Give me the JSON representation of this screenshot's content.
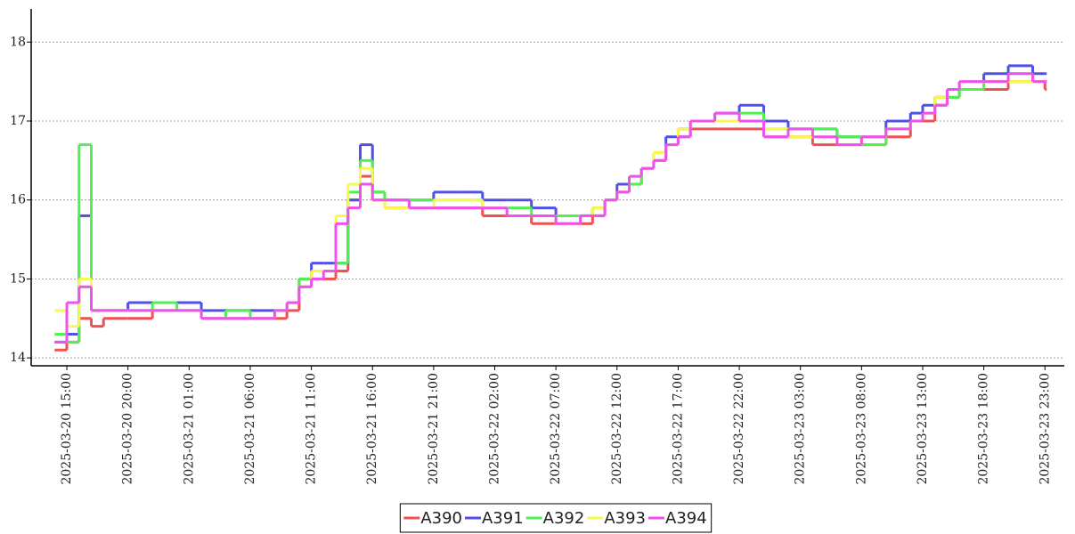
{
  "chart_data": {
    "type": "line",
    "step": true,
    "x": [
      "2025-03-20 14:00",
      "2025-03-20 15:00",
      "2025-03-20 16:00",
      "2025-03-20 17:00",
      "2025-03-20 18:00",
      "2025-03-20 20:00",
      "2025-03-20 22:00",
      "2025-03-21 00:00",
      "2025-03-21 02:00",
      "2025-03-21 04:00",
      "2025-03-21 06:00",
      "2025-03-21 08:00",
      "2025-03-21 09:00",
      "2025-03-21 10:00",
      "2025-03-21 11:00",
      "2025-03-21 12:00",
      "2025-03-21 13:00",
      "2025-03-21 14:00",
      "2025-03-21 15:00",
      "2025-03-21 16:00",
      "2025-03-21 17:00",
      "2025-03-21 19:00",
      "2025-03-21 21:00",
      "2025-03-21 23:00",
      "2025-03-22 01:00",
      "2025-03-22 03:00",
      "2025-03-22 05:00",
      "2025-03-22 07:00",
      "2025-03-22 09:00",
      "2025-03-22 10:00",
      "2025-03-22 11:00",
      "2025-03-22 12:00",
      "2025-03-22 13:00",
      "2025-03-22 14:00",
      "2025-03-22 15:00",
      "2025-03-22 16:00",
      "2025-03-22 17:00",
      "2025-03-22 18:00",
      "2025-03-22 20:00",
      "2025-03-22 22:00",
      "2025-03-23 00:00",
      "2025-03-23 02:00",
      "2025-03-23 04:00",
      "2025-03-23 06:00",
      "2025-03-23 08:00",
      "2025-03-23 10:00",
      "2025-03-23 12:00",
      "2025-03-23 13:00",
      "2025-03-23 14:00",
      "2025-03-23 15:00",
      "2025-03-23 16:00",
      "2025-03-23 18:00",
      "2025-03-23 20:00",
      "2025-03-23 22:00",
      "2025-03-23 23:00"
    ],
    "series": [
      {
        "name": "A390",
        "color": "#f05050",
        "values": [
          14.1,
          14.2,
          14.5,
          14.4,
          14.5,
          14.5,
          14.6,
          14.6,
          14.5,
          14.5,
          14.5,
          14.5,
          14.6,
          14.9,
          15.0,
          15.0,
          15.1,
          16.0,
          16.3,
          16.0,
          15.9,
          15.9,
          15.9,
          15.9,
          15.8,
          15.8,
          15.7,
          15.7,
          15.7,
          15.8,
          16.0,
          16.1,
          16.2,
          16.4,
          16.5,
          16.7,
          16.8,
          16.9,
          16.9,
          16.9,
          16.8,
          16.8,
          16.7,
          16.7,
          16.7,
          16.8,
          17.0,
          17.0,
          17.2,
          17.3,
          17.4,
          17.4,
          17.5,
          17.5,
          17.4
        ]
      },
      {
        "name": "A391",
        "color": "#5050e8",
        "values": [
          14.2,
          14.3,
          15.8,
          14.6,
          14.6,
          14.7,
          14.7,
          14.7,
          14.6,
          14.6,
          14.6,
          14.6,
          14.7,
          15.0,
          15.2,
          15.2,
          15.2,
          16.0,
          16.7,
          16.1,
          16.0,
          16.0,
          16.1,
          16.1,
          16.0,
          16.0,
          15.9,
          15.8,
          15.8,
          15.9,
          16.0,
          16.2,
          16.3,
          16.4,
          16.6,
          16.8,
          16.9,
          17.0,
          17.1,
          17.2,
          17.0,
          16.9,
          16.9,
          16.8,
          16.8,
          17.0,
          17.1,
          17.2,
          17.3,
          17.4,
          17.5,
          17.6,
          17.7,
          17.6,
          17.6
        ]
      },
      {
        "name": "A392",
        "color": "#50f050",
        "values": [
          14.3,
          14.2,
          16.7,
          14.6,
          14.6,
          14.6,
          14.7,
          14.6,
          14.5,
          14.6,
          14.5,
          14.6,
          14.7,
          15.0,
          15.1,
          15.1,
          15.2,
          16.1,
          16.5,
          16.1,
          16.0,
          16.0,
          16.0,
          16.0,
          15.9,
          15.9,
          15.8,
          15.8,
          15.8,
          15.9,
          16.0,
          16.1,
          16.2,
          16.4,
          16.6,
          16.7,
          16.8,
          17.0,
          17.0,
          17.1,
          16.9,
          16.9,
          16.9,
          16.8,
          16.7,
          16.9,
          17.0,
          17.1,
          17.3,
          17.3,
          17.4,
          17.5,
          17.6,
          17.5,
          17.5
        ]
      },
      {
        "name": "A393",
        "color": "#f8f850",
        "values": [
          14.6,
          14.4,
          15.0,
          14.6,
          14.6,
          14.6,
          14.6,
          14.6,
          14.5,
          14.5,
          14.5,
          14.6,
          14.7,
          14.9,
          15.1,
          15.1,
          15.8,
          16.2,
          16.4,
          16.0,
          15.9,
          15.9,
          16.0,
          16.0,
          15.9,
          15.8,
          15.8,
          15.7,
          15.8,
          15.9,
          16.0,
          16.1,
          16.3,
          16.4,
          16.6,
          16.7,
          16.9,
          17.0,
          17.0,
          17.0,
          16.9,
          16.8,
          16.8,
          16.7,
          16.8,
          16.9,
          17.0,
          17.1,
          17.3,
          17.4,
          17.5,
          17.5,
          17.5,
          17.5,
          17.5
        ]
      },
      {
        "name": "A394",
        "color": "#f050f0",
        "values": [
          14.2,
          14.7,
          14.9,
          14.6,
          14.6,
          14.6,
          14.6,
          14.6,
          14.5,
          14.5,
          14.5,
          14.6,
          14.7,
          14.9,
          15.0,
          15.1,
          15.7,
          15.9,
          16.2,
          16.0,
          16.0,
          15.9,
          15.9,
          15.9,
          15.9,
          15.8,
          15.8,
          15.7,
          15.8,
          15.8,
          16.0,
          16.1,
          16.3,
          16.4,
          16.5,
          16.7,
          16.8,
          17.0,
          17.1,
          17.0,
          16.8,
          16.9,
          16.8,
          16.7,
          16.8,
          16.9,
          17.0,
          17.1,
          17.2,
          17.4,
          17.5,
          17.5,
          17.6,
          17.5,
          17.5
        ]
      }
    ],
    "xlim": [
      "2025-03-20 12:05",
      "2025-03-24 00:35"
    ],
    "xticks": [
      "2025-03-20 15:00",
      "2025-03-20 20:00",
      "2025-03-21 01:00",
      "2025-03-21 06:00",
      "2025-03-21 11:00",
      "2025-03-21 16:00",
      "2025-03-21 21:00",
      "2025-03-22 02:00",
      "2025-03-22 07:00",
      "2025-03-22 12:00",
      "2025-03-22 17:00",
      "2025-03-22 22:00",
      "2025-03-23 03:00",
      "2025-03-23 08:00",
      "2025-03-23 13:00",
      "2025-03-23 18:00",
      "2025-03-23 23:00"
    ],
    "ylim": [
      13.9,
      18.42
    ],
    "yticks": [
      14,
      15,
      16,
      17,
      18
    ],
    "grid": true,
    "legend": "bottom"
  }
}
